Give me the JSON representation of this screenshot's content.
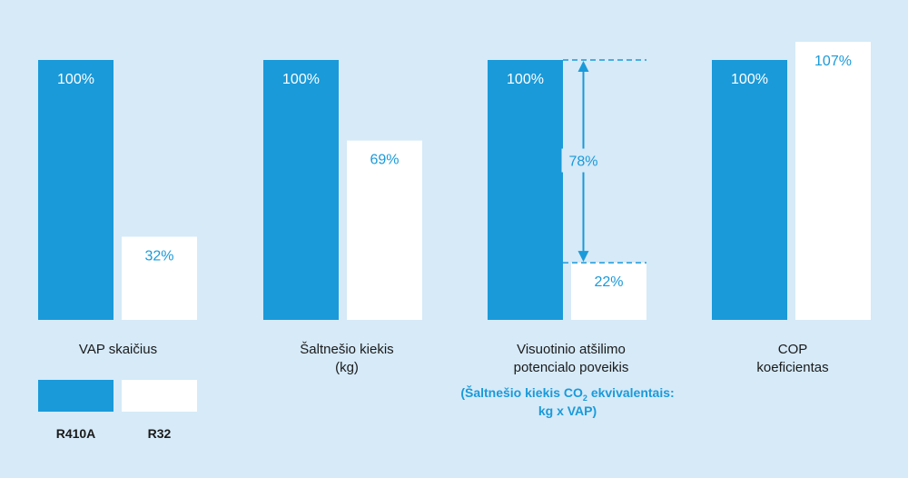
{
  "chart_data": {
    "type": "bar",
    "categories": [
      [
        "VAP skaičius"
      ],
      [
        "Šaltnešio kiekis",
        "(kg)"
      ],
      [
        "Visuotinio atšilimo",
        "potencialo poveikis"
      ],
      [
        "COP",
        "koeficientas"
      ]
    ],
    "series": [
      {
        "name": "R410A",
        "values": [
          100,
          100,
          100,
          100
        ],
        "color": "#1a9ad9",
        "label_color": "#ffffff"
      },
      {
        "name": "R32",
        "values": [
          32,
          69,
          22,
          107
        ],
        "color": "#ffffff",
        "label_color": "#1a9ad9"
      }
    ],
    "value_suffix": "%",
    "difference_annotation": {
      "category_index": 2,
      "label": "78%",
      "color": "#1a9ad9"
    },
    "note": {
      "prefix": "(Šaltnešio kiekis  CO",
      "subscript": "2",
      "suffix": " ekvivalentais:",
      "line2": "kg x VAP)"
    },
    "ylim": [
      0,
      107
    ],
    "background": "#d6eaf8"
  }
}
